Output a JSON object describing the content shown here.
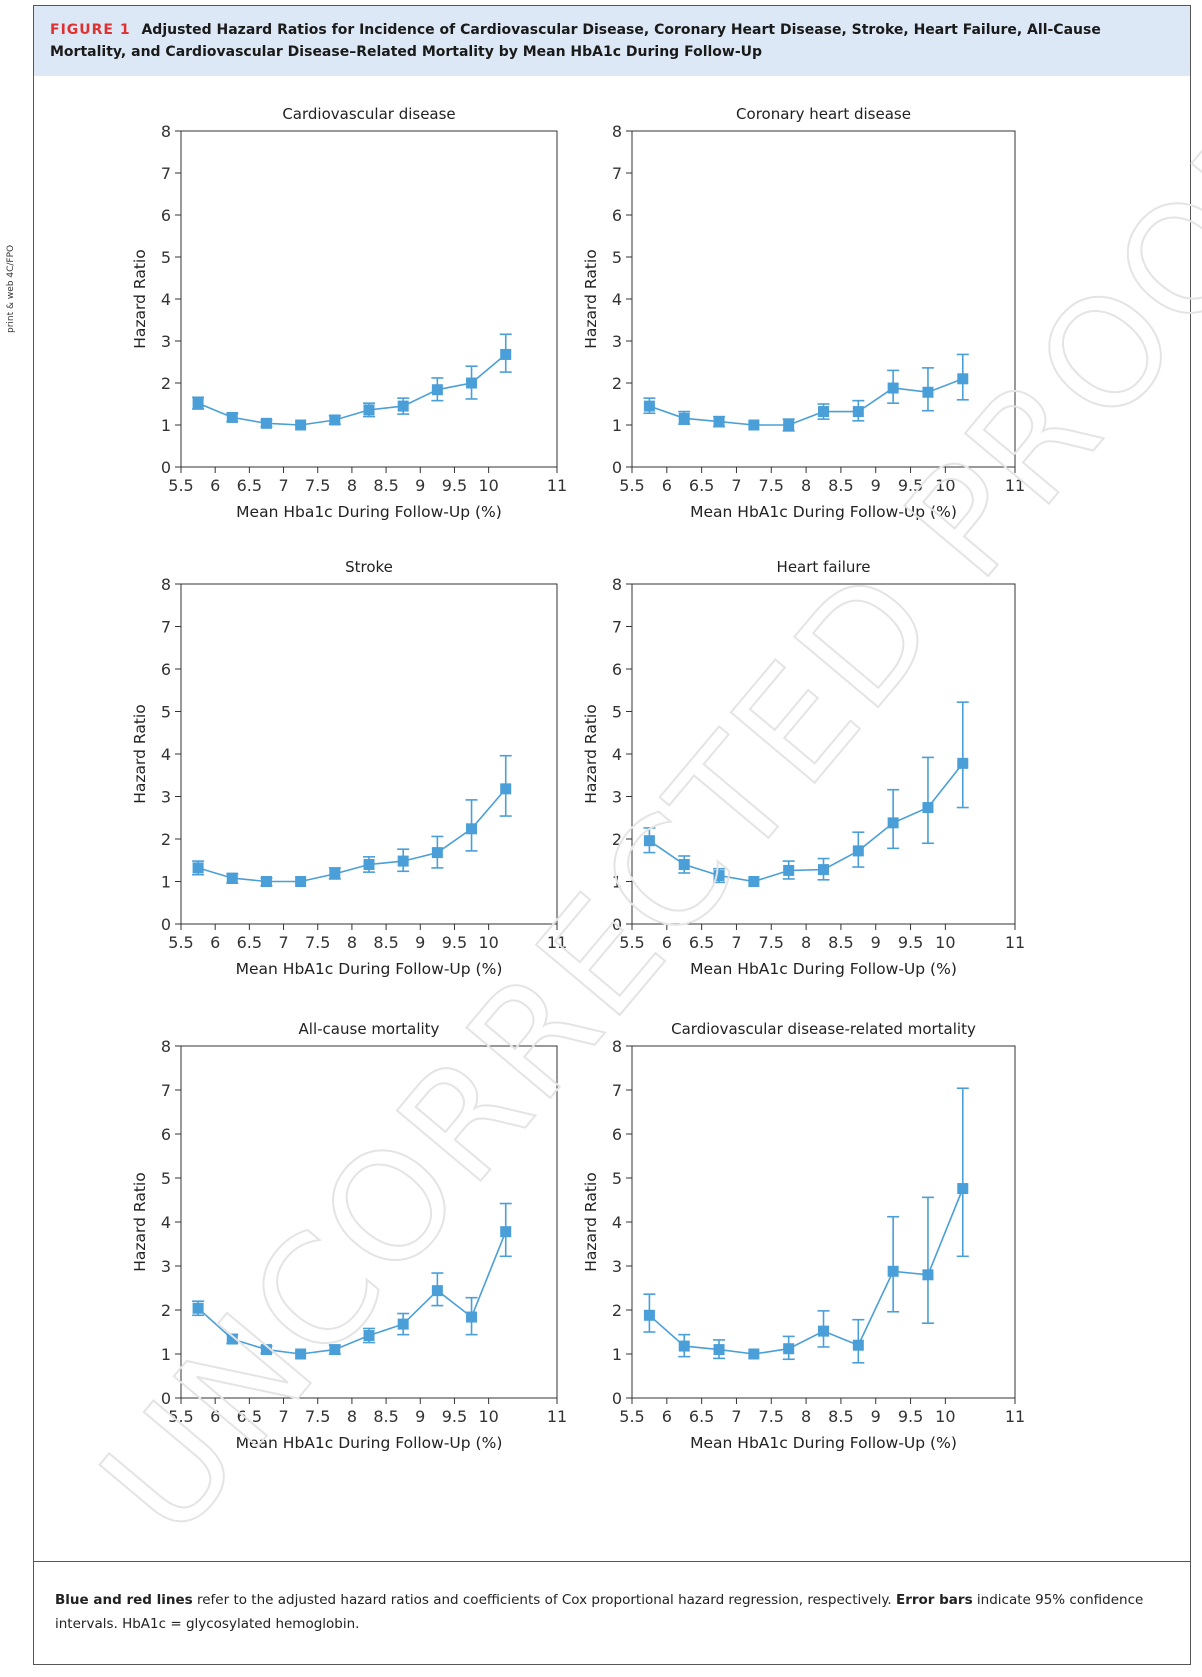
{
  "side_note": "print & web 4C/FPO",
  "figure": {
    "label": "FIGURE 1",
    "title": "Adjusted Hazard Ratios for Incidence of Cardiovascular Disease, Coronary Heart Disease, Stroke, Heart Failure, All-Cause Mortality, and Cardiovascular Disease–Related Mortality by Mean HbA1c During Follow-Up"
  },
  "caption": {
    "bold1": "Blue and red lines",
    "text1": " refer to the adjusted hazard ratios and coefficients of Cox proportional hazard regression, respectively. ",
    "bold2": "Error bars",
    "text2": " indicate 95% confidence intervals. HbA1c = glycosylated hemoglobin."
  },
  "watermark": "UNCORRECTED PROOF",
  "colors": {
    "series": "#4a9fd8",
    "header_bg": "#dce8f5",
    "figure_label": "#e03131",
    "watermark": "#e4e4e4"
  },
  "chart_data": [
    {
      "type": "line",
      "title": "Cardiovascular disease",
      "xlabel": "Mean Hba1c During Follow-Up (%)",
      "ylabel": "Hazard Ratio",
      "xlim": [
        5.5,
        11
      ],
      "ylim": [
        0,
        8
      ],
      "xticks": [
        "5.5",
        "6",
        "6.5",
        "7",
        "7.5",
        "8",
        "8.5",
        "9",
        "9.5",
        "10",
        "11"
      ],
      "xtick_values": [
        5.5,
        6,
        6.5,
        7,
        7.5,
        8,
        8.5,
        9,
        9.5,
        10,
        11
      ],
      "yticks": [
        "0",
        "1",
        "2",
        "3",
        "4",
        "5",
        "6",
        "7",
        "8"
      ],
      "x": [
        5.75,
        6.25,
        6.75,
        7.25,
        7.75,
        8.25,
        8.75,
        9.25,
        9.75,
        10.25
      ],
      "y": [
        1.52,
        1.18,
        1.04,
        1.0,
        1.12,
        1.36,
        1.45,
        1.84,
        2.0,
        2.68
      ],
      "lower": [
        1.38,
        1.08,
        0.96,
        1.0,
        1.02,
        1.2,
        1.26,
        1.58,
        1.62,
        2.26
      ],
      "upper": [
        1.66,
        1.28,
        1.12,
        1.0,
        1.22,
        1.52,
        1.64,
        2.12,
        2.4,
        3.16
      ]
    },
    {
      "type": "line",
      "title": "Coronary heart disease",
      "xlabel": "Mean HbA1c During Follow-Up (%)",
      "ylabel": "Hazard Ratio",
      "xlim": [
        5.5,
        11
      ],
      "ylim": [
        0,
        8
      ],
      "xticks": [
        "5.5",
        "6",
        "6.5",
        "7",
        "7.5",
        "8",
        "8.5",
        "9",
        "9.5",
        "10",
        "11"
      ],
      "xtick_values": [
        5.5,
        6,
        6.5,
        7,
        7.5,
        8,
        8.5,
        9,
        9.5,
        10,
        11
      ],
      "yticks": [
        "0",
        "1",
        "2",
        "3",
        "4",
        "5",
        "6",
        "7",
        "8"
      ],
      "x": [
        5.75,
        6.25,
        6.75,
        7.25,
        7.75,
        8.25,
        8.75,
        9.25,
        9.75,
        10.25
      ],
      "y": [
        1.45,
        1.16,
        1.08,
        1.0,
        1.0,
        1.32,
        1.32,
        1.88,
        1.78,
        2.1
      ],
      "lower": [
        1.28,
        1.02,
        0.96,
        1.0,
        0.86,
        1.14,
        1.1,
        1.52,
        1.34,
        1.6
      ],
      "upper": [
        1.64,
        1.32,
        1.2,
        1.0,
        1.14,
        1.5,
        1.58,
        2.3,
        2.36,
        2.68
      ]
    },
    {
      "type": "line",
      "title": "Stroke",
      "xlabel": "Mean HbA1c During Follow-Up (%)",
      "ylabel": "Hazard Ratio",
      "xlim": [
        5.5,
        11
      ],
      "ylim": [
        0,
        8
      ],
      "xticks": [
        "5.5",
        "6",
        "6.5",
        "7",
        "7.5",
        "8",
        "8.5",
        "9",
        "9.5",
        "10",
        "11"
      ],
      "xtick_values": [
        5.5,
        6,
        6.5,
        7,
        7.5,
        8,
        8.5,
        9,
        9.5,
        10,
        11
      ],
      "yticks": [
        "0",
        "1",
        "2",
        "3",
        "4",
        "5",
        "6",
        "7",
        "8"
      ],
      "x": [
        5.75,
        6.25,
        6.75,
        7.25,
        7.75,
        8.25,
        8.75,
        9.25,
        9.75,
        10.25
      ],
      "y": [
        1.32,
        1.08,
        1.0,
        1.0,
        1.18,
        1.4,
        1.48,
        1.68,
        2.24,
        3.18
      ],
      "lower": [
        1.16,
        0.96,
        0.9,
        1.0,
        1.06,
        1.22,
        1.24,
        1.32,
        1.72,
        2.54
      ],
      "upper": [
        1.48,
        1.18,
        1.08,
        1.0,
        1.32,
        1.58,
        1.76,
        2.06,
        2.92,
        3.96
      ]
    },
    {
      "type": "line",
      "title": "Heart failure",
      "xlabel": "Mean HbA1c During Follow-Up (%)",
      "ylabel": "Hazard Ratio",
      "xlim": [
        5.5,
        11
      ],
      "ylim": [
        0,
        8
      ],
      "xticks": [
        "5.5",
        "6",
        "6.5",
        "7",
        "7.5",
        "8",
        "8.5",
        "9",
        "9.5",
        "10",
        "11"
      ],
      "xtick_values": [
        5.5,
        6,
        6.5,
        7,
        7.5,
        8,
        8.5,
        9,
        9.5,
        10,
        11
      ],
      "yticks": [
        "0",
        "1",
        "2",
        "3",
        "4",
        "5",
        "6",
        "7",
        "8"
      ],
      "x": [
        5.75,
        6.25,
        6.75,
        7.25,
        7.75,
        8.25,
        8.75,
        9.25,
        9.75,
        10.25
      ],
      "y": [
        1.96,
        1.4,
        1.14,
        1.0,
        1.26,
        1.28,
        1.72,
        2.38,
        2.74,
        3.78
      ],
      "lower": [
        1.68,
        1.2,
        0.98,
        1.0,
        1.06,
        1.04,
        1.34,
        1.78,
        1.9,
        2.74
      ],
      "upper": [
        2.26,
        1.6,
        1.3,
        1.0,
        1.48,
        1.54,
        2.16,
        3.16,
        3.92,
        5.22
      ]
    },
    {
      "type": "line",
      "title": "All-cause mortality",
      "xlabel": "Mean HbA1c During Follow-Up (%)",
      "ylabel": "Hazard Ratio",
      "xlim": [
        5.5,
        11
      ],
      "ylim": [
        0,
        8
      ],
      "xticks": [
        "5.5",
        "6",
        "6.5",
        "7",
        "7.5",
        "8",
        "8.5",
        "9",
        "9.5",
        "10",
        "11"
      ],
      "xtick_values": [
        5.5,
        6,
        6.5,
        7,
        7.5,
        8,
        8.5,
        9,
        9.5,
        10,
        11
      ],
      "yticks": [
        "0",
        "1",
        "2",
        "3",
        "4",
        "5",
        "6",
        "7",
        "8"
      ],
      "x": [
        5.75,
        6.25,
        6.75,
        7.25,
        7.75,
        8.25,
        8.75,
        9.25,
        9.75,
        10.25
      ],
      "y": [
        2.04,
        1.34,
        1.1,
        1.0,
        1.1,
        1.42,
        1.68,
        2.44,
        1.84,
        3.78
      ],
      "lower": [
        1.88,
        1.24,
        1.02,
        1.0,
        1.0,
        1.26,
        1.44,
        2.1,
        1.44,
        3.22
      ],
      "upper": [
        2.2,
        1.44,
        1.18,
        1.0,
        1.2,
        1.58,
        1.92,
        2.84,
        2.28,
        4.42
      ]
    },
    {
      "type": "line",
      "title": "Cardiovascular disease-related mortality",
      "xlabel": "Mean HbA1c During Follow-Up (%)",
      "ylabel": "Hazard Ratio",
      "xlim": [
        5.5,
        11
      ],
      "ylim": [
        0,
        8
      ],
      "xticks": [
        "5.5",
        "6",
        "6.5",
        "7",
        "7.5",
        "8",
        "8.5",
        "9",
        "9.5",
        "10",
        "11"
      ],
      "xtick_values": [
        5.5,
        6,
        6.5,
        7,
        7.5,
        8,
        8.5,
        9,
        9.5,
        10,
        11
      ],
      "yticks": [
        "0",
        "1",
        "2",
        "3",
        "4",
        "5",
        "6",
        "7",
        "8"
      ],
      "x": [
        5.75,
        6.25,
        6.75,
        7.25,
        7.75,
        8.25,
        8.75,
        9.25,
        9.75,
        10.25
      ],
      "y": [
        1.88,
        1.18,
        1.1,
        1.0,
        1.12,
        1.52,
        1.2,
        2.88,
        2.8,
        4.76
      ],
      "lower": [
        1.5,
        0.94,
        0.9,
        1.0,
        0.88,
        1.16,
        0.8,
        1.96,
        1.7,
        3.22
      ],
      "upper": [
        2.36,
        1.44,
        1.32,
        1.0,
        1.4,
        1.98,
        1.78,
        4.12,
        4.56,
        7.04
      ]
    }
  ]
}
